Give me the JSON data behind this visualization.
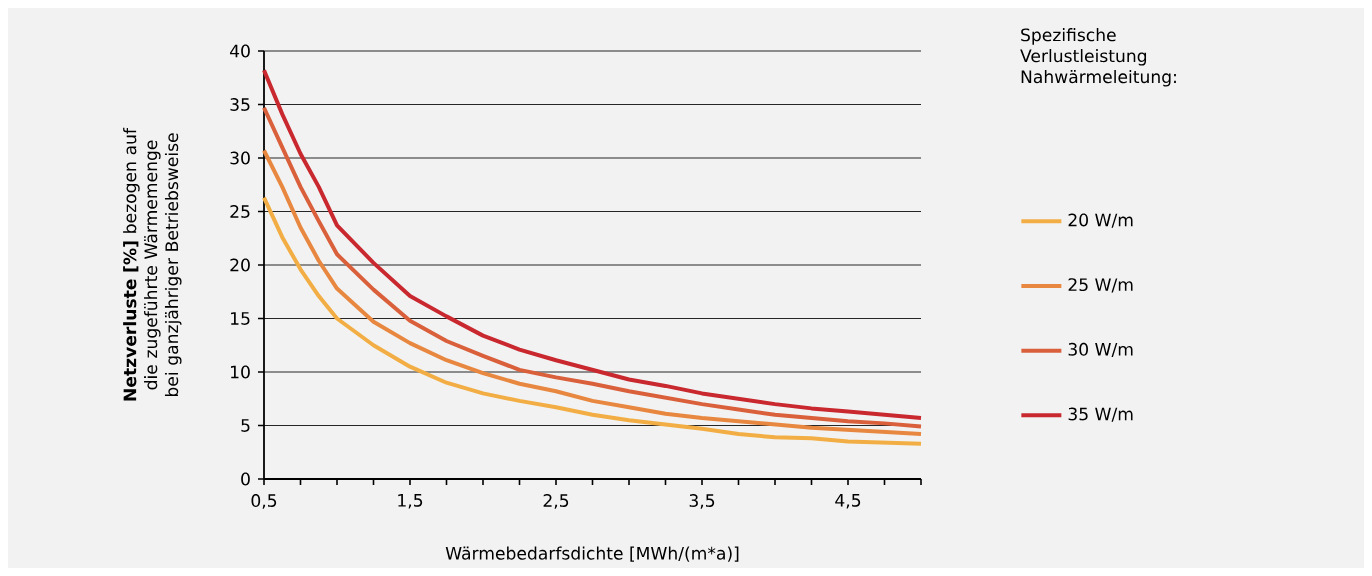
{
  "chart_data": {
    "type": "line",
    "xlabel": "Wärmebedarfsdichte [MWh/(m*a)]",
    "ylabel": "**Netzverluste [%]** bezogen auf die zugeführte Wärmemenge bei ganzjähriger Betriebsweise",
    "legend_title": "Spezifische Verlustleistung Nahwärmeleitung:",
    "x": [
      0.5,
      0.625,
      0.75,
      0.875,
      1,
      1.25,
      1.5,
      1.75,
      2,
      2.25,
      2.5,
      2.75,
      3,
      3.25,
      3.5,
      3.75,
      4,
      4.25,
      4.5,
      4.75,
      5
    ],
    "series": [
      {
        "name": "20 W/m",
        "color": "#f2ae44",
        "values": [
          26.3,
          22.6,
          19.6,
          17.1,
          15.0,
          12.5,
          10.5,
          9.0,
          8.0,
          7.3,
          6.7,
          6.0,
          5.5,
          5.1,
          4.7,
          4.2,
          3.9,
          3.8,
          3.5,
          3.4,
          3.3
        ]
      },
      {
        "name": "25 W/m",
        "color": "#e8873f",
        "values": [
          30.7,
          27.3,
          23.5,
          20.4,
          17.8,
          14.7,
          12.7,
          11.1,
          9.9,
          8.9,
          8.2,
          7.3,
          6.7,
          6.1,
          5.7,
          5.4,
          5.1,
          4.8,
          4.6,
          4.4,
          4.2
        ]
      },
      {
        "name": "30 W/m",
        "color": "#d9603b",
        "values": [
          34.7,
          31.0,
          27.3,
          24.1,
          21.0,
          17.7,
          14.8,
          12.9,
          11.5,
          10.2,
          9.5,
          8.9,
          8.2,
          7.6,
          7.0,
          6.5,
          6.0,
          5.7,
          5.4,
          5.2,
          4.9
        ]
      },
      {
        "name": "35 W/m",
        "color": "#c8282e",
        "values": [
          38.2,
          34.1,
          30.4,
          27.3,
          23.7,
          20.2,
          17.1,
          15.2,
          13.4,
          12.1,
          11.1,
          10.2,
          9.3,
          8.7,
          8.0,
          7.5,
          7.0,
          6.6,
          6.3,
          6.0,
          5.7
        ]
      }
    ],
    "xlim": [
      0.5,
      5
    ],
    "ylim": [
      0,
      40
    ],
    "xticks": [
      {
        "value": 0.5,
        "label": "0,5"
      },
      {
        "value": 0.75,
        "label": null
      },
      {
        "value": 1,
        "label": null
      },
      {
        "value": 1.25,
        "label": null
      },
      {
        "value": 1.5,
        "label": "1,5"
      },
      {
        "value": 1.75,
        "label": null
      },
      {
        "value": 2,
        "label": null
      },
      {
        "value": 2.25,
        "label": null
      },
      {
        "value": 2.5,
        "label": "2,5"
      },
      {
        "value": 2.75,
        "label": null
      },
      {
        "value": 3,
        "label": null
      },
      {
        "value": 3.25,
        "label": null
      },
      {
        "value": 3.5,
        "label": "3,5"
      },
      {
        "value": 3.75,
        "label": null
      },
      {
        "value": 4,
        "label": null
      },
      {
        "value": 4.25,
        "label": null
      },
      {
        "value": 4.5,
        "label": "4,5"
      },
      {
        "value": 4.75,
        "label": null
      },
      {
        "value": 5,
        "label": null
      }
    ],
    "yticks": [
      0,
      5,
      10,
      15,
      20,
      25,
      30,
      35,
      40
    ],
    "grid": "y",
    "legend": "right",
    "line_style": "solid"
  }
}
